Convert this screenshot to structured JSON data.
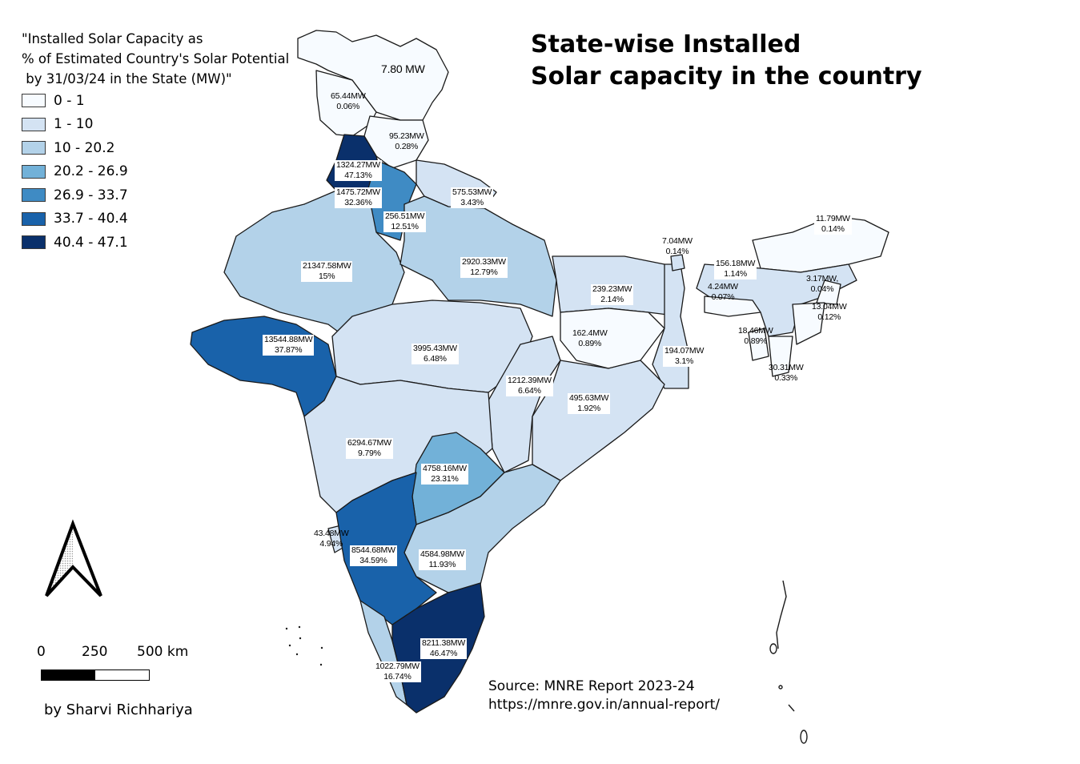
{
  "title": {
    "line1": "State-wise Installed",
    "line2": "Solar capacity in the country"
  },
  "legend": {
    "title": "\"Installed Solar Capacity as\n% of Estimated Country's Solar Potential\n by 31/03/24 in the State (MW)\"",
    "classes": [
      {
        "label": "0 - 1",
        "color": "#f7fbff"
      },
      {
        "label": "1 - 10",
        "color": "#d4e3f3"
      },
      {
        "label": "10 - 20.2",
        "color": "#b3d2e9"
      },
      {
        "label": "20.2 - 26.9",
        "color": "#72b1d8"
      },
      {
        "label": "26.9 - 33.7",
        "color": "#3f8bc4"
      },
      {
        "label": "33.7 - 40.4",
        "color": "#1962aa"
      },
      {
        "label": "40.4 - 47.1",
        "color": "#0a306b"
      }
    ]
  },
  "scale_bar": {
    "labels": [
      "0",
      "250",
      "500 km"
    ]
  },
  "author": "by Sharvi Richhariya",
  "source": {
    "line1": "Source: MNRE Report 2023-24",
    "line2": "https://mnre.gov.in/annual-report/"
  },
  "regions": [
    {
      "capacity": "7.80 MW",
      "percent": ""
    },
    {
      "capacity": "65.44MW",
      "percent": "0.06%"
    },
    {
      "capacity": "95.23MW",
      "percent": "0.28%"
    },
    {
      "capacity": "1324.27MW",
      "percent": "47.13%"
    },
    {
      "capacity": "1475.72MW",
      "percent": "32.36%"
    },
    {
      "capacity": "256.51MW",
      "percent": "12.51%"
    },
    {
      "capacity": "575.53MW",
      "percent": "3.43%"
    },
    {
      "capacity": "21347.58MW",
      "percent": "15%"
    },
    {
      "capacity": "2920.33MW",
      "percent": "12.79%"
    },
    {
      "capacity": "239.23MW",
      "percent": "2.14%"
    },
    {
      "capacity": "7.04MW",
      "percent": "0.14%"
    },
    {
      "capacity": "156.18MW",
      "percent": "1.14%"
    },
    {
      "capacity": "4.24MW",
      "percent": "0.07%"
    },
    {
      "capacity": "11.79MW",
      "percent": "0.14%"
    },
    {
      "capacity": "3.17MW,",
      "percent": "0.04%"
    },
    {
      "capacity": "13.04MW",
      "percent": "0.12%"
    },
    {
      "capacity": "18.46MW",
      "percent": "0.89%"
    },
    {
      "capacity": "30.31MW",
      "percent": "0.33%"
    },
    {
      "capacity": "162.4MW",
      "percent": "0.89%"
    },
    {
      "capacity": "194.07MW",
      "percent": "3.1%"
    },
    {
      "capacity": "13544.88MW",
      "percent": "37.87%"
    },
    {
      "capacity": "3995.43MW",
      "percent": "6.48%"
    },
    {
      "capacity": "1212.39MW",
      "percent": "6.64%"
    },
    {
      "capacity": "495.63MW",
      "percent": "1.92%"
    },
    {
      "capacity": "6294.67MW",
      "percent": "9.79%"
    },
    {
      "capacity": "4758.16MW",
      "percent": "23.31%"
    },
    {
      "capacity": "43.48MW",
      "percent": "4.94%"
    },
    {
      "capacity": "8544.68MW",
      "percent": "34.59%"
    },
    {
      "capacity": "4584.98MW",
      "percent": "11.93%"
    },
    {
      "capacity": "8211.38MW",
      "percent": "46.47%"
    },
    {
      "capacity": "1022.79MW",
      "percent": "16.74%"
    }
  ]
}
